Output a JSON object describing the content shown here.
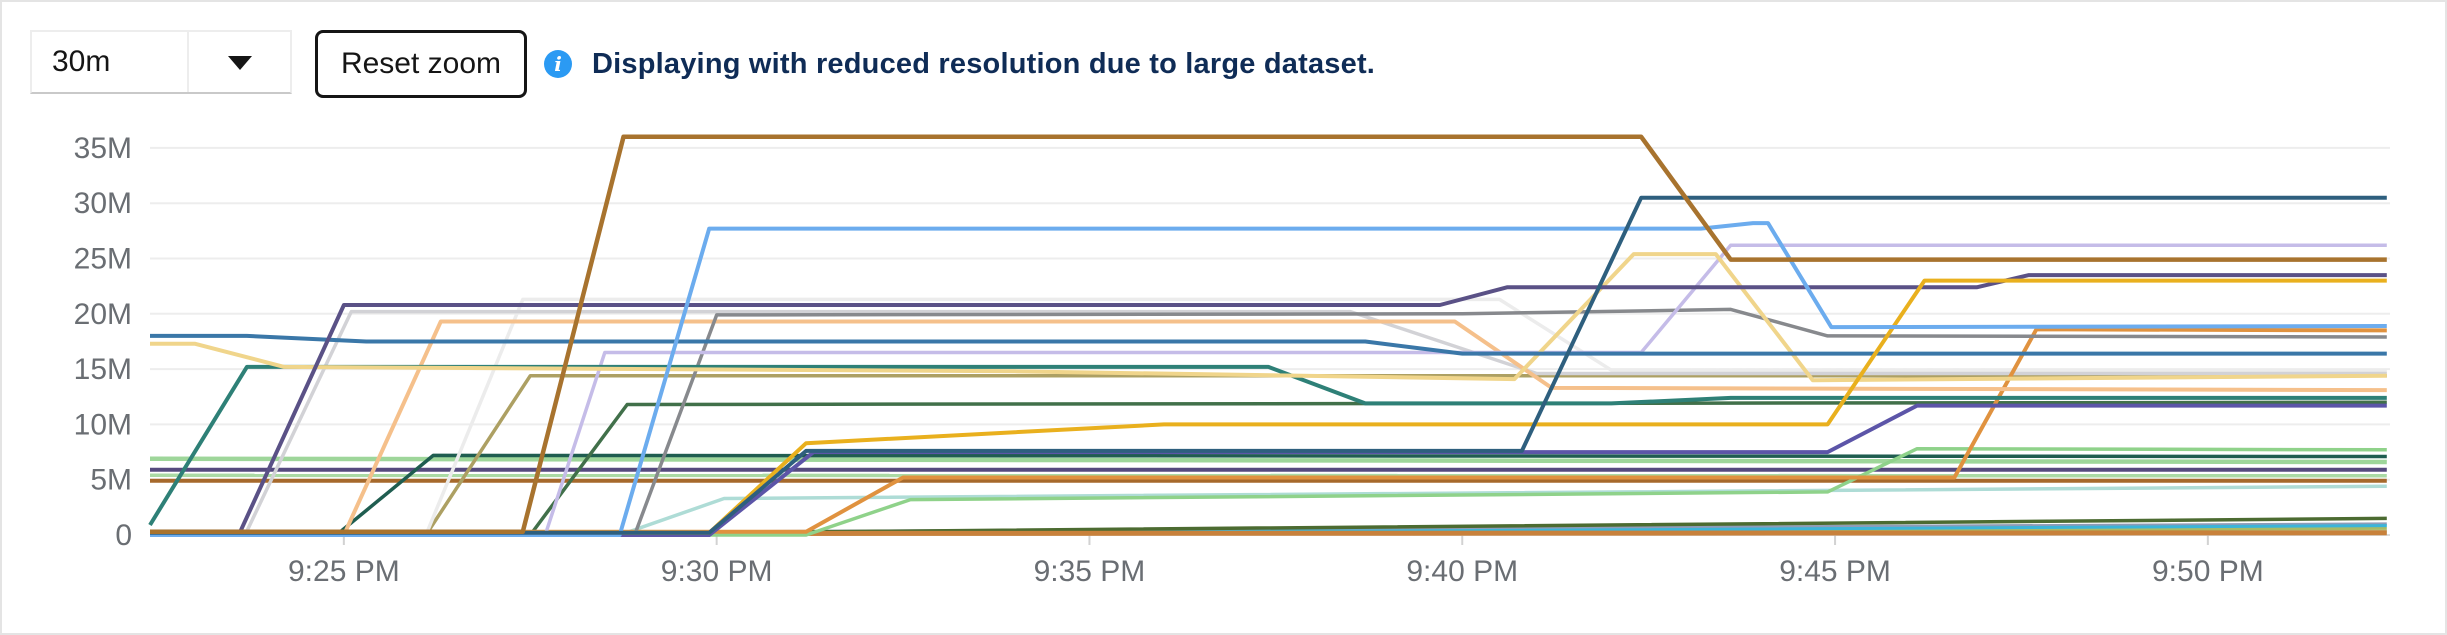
{
  "toolbar": {
    "interval_select": {
      "value": "30m"
    },
    "reset_zoom_label": "Reset zoom",
    "info_message": "Displaying with reduced resolution due to large dataset."
  },
  "colors": {
    "info_icon_blue": "#2b9af3",
    "info_text_navy": "#0f2c56",
    "axis_label_gray": "#6a6e73",
    "gridline": "#ededed",
    "axis_line": "#dcdcdc",
    "tick_stub": "#d2d2d2"
  },
  "chart_data": {
    "type": "line",
    "title": "",
    "xlabel": "",
    "ylabel": "",
    "legend": "none",
    "grid": "horizontal",
    "note": "x values are minutes after 9:00 PM; y values are millions (M)",
    "x_axis": {
      "domain_minutes": [
        22.4,
        52.4
      ],
      "tick_minutes": [
        25,
        30,
        35,
        40,
        45,
        50
      ],
      "tick_labels": [
        "9:25 PM",
        "9:30 PM",
        "9:35 PM",
        "9:40 PM",
        "9:45 PM",
        "9:50 PM"
      ]
    },
    "y_axis": {
      "range_millions": [
        0,
        36.5
      ],
      "tick_values": [
        0,
        5,
        10,
        15,
        20,
        25,
        30,
        35
      ],
      "tick_labels": [
        "0",
        "5M",
        "10M",
        "15M",
        "20M",
        "25M",
        "30M",
        "35M"
      ]
    },
    "series": [
      {
        "name": "pale-green-bottom",
        "color": "#b9dcae",
        "width": 4,
        "points": [
          [
            22.4,
            0.02
          ],
          [
            52.4,
            0.3
          ]
        ]
      },
      {
        "name": "light-olive",
        "color": "#a9ba64",
        "width": 3,
        "points": [
          [
            22.4,
            0.0
          ],
          [
            30,
            0.1
          ],
          [
            52.4,
            0.6
          ]
        ]
      },
      {
        "name": "blue-gray-bottom",
        "color": "#8d9cb8",
        "width": 3,
        "points": [
          [
            22.4,
            0.05
          ],
          [
            52.4,
            1.0
          ]
        ]
      },
      {
        "name": "bright-cyan",
        "color": "#3bb5d8",
        "width": 3,
        "points": [
          [
            22.4,
            0.0
          ],
          [
            40,
            0.4
          ],
          [
            52.4,
            0.85
          ]
        ]
      },
      {
        "name": "dark-olive",
        "color": "#4c6b31",
        "width": 3.5,
        "points": [
          [
            22.4,
            0.05
          ],
          [
            29,
            0.15
          ],
          [
            52.4,
            1.5
          ]
        ]
      },
      {
        "name": "rust",
        "color": "#c8813b",
        "width": 5,
        "points": [
          [
            22.4,
            0.12
          ],
          [
            52.4,
            0.2
          ]
        ]
      },
      {
        "name": "pale-cyan",
        "color": "#aedcd6",
        "width": 3.5,
        "points": [
          [
            22.4,
            0
          ],
          [
            28.7,
            0
          ],
          [
            30.1,
            3.3
          ],
          [
            52.4,
            4.4
          ]
        ]
      },
      {
        "name": "light-green-low",
        "color": "#abdaa5",
        "width": 3.5,
        "points": [
          [
            22.4,
            5.4
          ],
          [
            52.4,
            5.35
          ]
        ]
      },
      {
        "name": "brown-flat",
        "color": "#a6692c",
        "width": 4,
        "points": [
          [
            22.4,
            4.9
          ],
          [
            52.4,
            4.9
          ]
        ]
      },
      {
        "name": "dark-purple-flat",
        "color": "#554a7e",
        "width": 4,
        "points": [
          [
            22.4,
            5.9
          ],
          [
            52.4,
            5.9
          ]
        ]
      },
      {
        "name": "light-green-mid",
        "color": "#9ed69a",
        "width": 4.5,
        "points": [
          [
            22.4,
            6.9
          ],
          [
            52.4,
            6.6
          ]
        ]
      },
      {
        "name": "dark-teal-low",
        "color": "#1f5d50",
        "width": 3.5,
        "points": [
          [
            22.4,
            0
          ],
          [
            24.9,
            0
          ],
          [
            26.2,
            7.2
          ],
          [
            52.4,
            7.1
          ]
        ]
      },
      {
        "name": "light-green-rise",
        "color": "#8fd28a",
        "width": 3.5,
        "points": [
          [
            22.4,
            0
          ],
          [
            31.2,
            0
          ],
          [
            32.6,
            3.2
          ],
          [
            44.9,
            3.9
          ],
          [
            46.1,
            7.8
          ],
          [
            52.4,
            7.7
          ]
        ]
      },
      {
        "name": "khaki",
        "color": "#ada063",
        "width": 3.5,
        "points": [
          [
            22.4,
            0
          ],
          [
            26.1,
            0
          ],
          [
            27.5,
            14.4
          ],
          [
            52.4,
            14.4
          ]
        ]
      },
      {
        "name": "pale-white",
        "color": "#ececec",
        "width": 3.5,
        "points": [
          [
            22.4,
            0
          ],
          [
            26.1,
            0
          ],
          [
            27.4,
            21.3
          ],
          [
            40.5,
            21.3
          ],
          [
            42.0,
            14.9
          ],
          [
            52.4,
            14.8
          ]
        ]
      },
      {
        "name": "light-gray",
        "color": "#d2d2d6",
        "width": 3.5,
        "points": [
          [
            22.4,
            0.35
          ],
          [
            23.7,
            0.35
          ],
          [
            25.1,
            20.2
          ],
          [
            38.5,
            20.2
          ],
          [
            41.0,
            14.6
          ],
          [
            52.4,
            14.6
          ]
        ]
      },
      {
        "name": "forest-green",
        "color": "#41704a",
        "width": 3.5,
        "points": [
          [
            22.4,
            0
          ],
          [
            27.5,
            0
          ],
          [
            28.8,
            11.8
          ],
          [
            52.4,
            12.0
          ]
        ]
      },
      {
        "name": "strong-orange",
        "color": "#e0923f",
        "width": 4,
        "points": [
          [
            22.4,
            0.3
          ],
          [
            31.2,
            0.3
          ],
          [
            32.5,
            5.2
          ],
          [
            46.6,
            5.2
          ],
          [
            47.7,
            18.6
          ],
          [
            52.4,
            18.5
          ]
        ]
      },
      {
        "name": "light-orange",
        "color": "#f5c08b",
        "width": 4,
        "points": [
          [
            22.4,
            0
          ],
          [
            25.0,
            0
          ],
          [
            26.3,
            19.3
          ],
          [
            39.9,
            19.3
          ],
          [
            41.2,
            13.3
          ],
          [
            52.4,
            13.1
          ]
        ]
      },
      {
        "name": "gray",
        "color": "#87898d",
        "width": 3.5,
        "points": [
          [
            22.4,
            0
          ],
          [
            28.9,
            0
          ],
          [
            30.0,
            19.9
          ],
          [
            40.0,
            20.0
          ],
          [
            43.6,
            20.4
          ],
          [
            44.9,
            18.0
          ],
          [
            52.4,
            17.9
          ]
        ]
      },
      {
        "name": "lavender",
        "color": "#c5bce8",
        "width": 3.5,
        "points": [
          [
            22.4,
            0
          ],
          [
            27.7,
            0
          ],
          [
            28.5,
            16.5
          ],
          [
            42.4,
            16.5
          ],
          [
            43.6,
            26.2
          ],
          [
            52.4,
            26.2
          ]
        ]
      },
      {
        "name": "blue-violet",
        "color": "#5c55a8",
        "width": 4,
        "points": [
          [
            22.4,
            0
          ],
          [
            29.9,
            0
          ],
          [
            31.3,
            7.5
          ],
          [
            44.9,
            7.5
          ],
          [
            46.1,
            11.7
          ],
          [
            52.4,
            11.7
          ]
        ]
      },
      {
        "name": "teal",
        "color": "#2e8077",
        "width": 4,
        "points": [
          [
            22.4,
            0.9
          ],
          [
            23.7,
            15.2
          ],
          [
            37.4,
            15.2
          ],
          [
            38.7,
            11.9
          ],
          [
            42.0,
            11.9
          ],
          [
            43.6,
            12.4
          ],
          [
            52.4,
            12.4
          ]
        ]
      },
      {
        "name": "wheat",
        "color": "#f0d58b",
        "width": 4,
        "points": [
          [
            22.4,
            17.3
          ],
          [
            23.0,
            17.3
          ],
          [
            24.2,
            15.2
          ],
          [
            34,
            14.8
          ],
          [
            40.7,
            14.1
          ],
          [
            42.3,
            25.4
          ],
          [
            43.4,
            25.4
          ],
          [
            44.7,
            14.0
          ],
          [
            52.4,
            14.4
          ]
        ]
      },
      {
        "name": "steel-blue",
        "color": "#3a77a8",
        "width": 4,
        "points": [
          [
            22.4,
            18.0
          ],
          [
            23.7,
            18.0
          ],
          [
            25.3,
            17.5
          ],
          [
            38.7,
            17.5
          ],
          [
            40.0,
            16.4
          ],
          [
            52.4,
            16.4
          ]
        ]
      },
      {
        "name": "purple-slate",
        "color": "#5a5186",
        "width": 4,
        "points": [
          [
            22.4,
            0.15
          ],
          [
            23.6,
            0.15
          ],
          [
            25.0,
            20.8
          ],
          [
            39.7,
            20.8
          ],
          [
            40.6,
            22.4
          ],
          [
            46.9,
            22.4
          ],
          [
            47.6,
            23.5
          ],
          [
            52.4,
            23.5
          ]
        ]
      },
      {
        "name": "gold",
        "color": "#e9b01e",
        "width": 4,
        "points": [
          [
            22.4,
            0.2
          ],
          [
            29.9,
            0.2
          ],
          [
            31.2,
            8.3
          ],
          [
            36.0,
            10.0
          ],
          [
            44.9,
            10.0
          ],
          [
            46.2,
            23.0
          ],
          [
            52.4,
            23.0
          ]
        ]
      },
      {
        "name": "light-blue",
        "color": "#6cacee",
        "width": 4,
        "points": [
          [
            22.4,
            0
          ],
          [
            28.7,
            0
          ],
          [
            29.9,
            27.7
          ],
          [
            43.2,
            27.7
          ],
          [
            43.9,
            28.2
          ],
          [
            44.1,
            28.2
          ],
          [
            44.95,
            18.8
          ],
          [
            52.4,
            18.9
          ]
        ]
      },
      {
        "name": "navy",
        "color": "#2e5f7e",
        "width": 4,
        "points": [
          [
            22.4,
            0.2
          ],
          [
            29.9,
            0.2
          ],
          [
            31.2,
            7.6
          ],
          [
            40.8,
            7.6
          ],
          [
            42.4,
            30.5
          ],
          [
            52.4,
            30.5
          ]
        ]
      },
      {
        "name": "brown-peak",
        "color": "#a8732e",
        "width": 4.5,
        "points": [
          [
            22.4,
            0.3
          ],
          [
            27.4,
            0.3
          ],
          [
            28.75,
            36.0
          ],
          [
            42.4,
            36.0
          ],
          [
            43.6,
            24.9
          ],
          [
            52.4,
            24.9
          ]
        ]
      }
    ]
  }
}
